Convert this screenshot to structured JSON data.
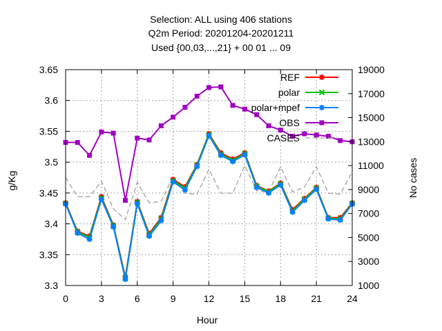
{
  "chart_data": {
    "type": "line",
    "title_lines": [
      "Selection: ALL using   406 stations",
      "Q2m   Period: 20201204-20201211",
      "Used {00,03,...,21} + 00 01 ... 09"
    ],
    "xlabel": "Hour",
    "ylabel": "g/Kg",
    "y2label": "No cases",
    "xlim": [
      0,
      24
    ],
    "ylim": [
      3.3,
      3.65
    ],
    "y2lim": [
      1000,
      19000
    ],
    "x_ticks": [
      "0",
      "3",
      "6",
      "9",
      "12",
      "15",
      "18",
      "21",
      "24"
    ],
    "y_ticks": [
      "3.3",
      "3.35",
      "3.4",
      "3.45",
      "3.5",
      "3.55",
      "3.6",
      "3.65"
    ],
    "y2_ticks": [
      "1000",
      "3000",
      "5000",
      "7000",
      "9000",
      "11000",
      "13000",
      "15000",
      "17000",
      "19000"
    ],
    "grid": true,
    "legend_position": "top-right",
    "x": [
      0,
      1,
      2,
      3,
      4,
      5,
      6,
      7,
      8,
      9,
      10,
      11,
      12,
      13,
      14,
      15,
      16,
      17,
      18,
      19,
      20,
      21,
      22,
      23,
      24
    ],
    "series": [
      {
        "name": "REF",
        "color": "#ff0000",
        "marker": "asterisk",
        "values": [
          3.434,
          3.388,
          3.38,
          3.444,
          3.398,
          3.314,
          3.436,
          3.384,
          3.41,
          3.472,
          3.46,
          3.496,
          3.546,
          3.515,
          3.505,
          3.515,
          3.462,
          3.453,
          3.466,
          3.423,
          3.441,
          3.459,
          3.41,
          3.41,
          3.434
        ]
      },
      {
        "name": "polar",
        "color": "#00c000",
        "marker": "x",
        "values": [
          3.433,
          3.387,
          3.378,
          3.442,
          3.397,
          3.312,
          3.435,
          3.382,
          3.408,
          3.47,
          3.458,
          3.495,
          3.545,
          3.513,
          3.503,
          3.514,
          3.461,
          3.452,
          3.465,
          3.421,
          3.44,
          3.458,
          3.409,
          3.408,
          3.433
        ]
      },
      {
        "name": "polar+mpef",
        "color": "#0080ff",
        "marker": "asterisk",
        "values": [
          3.432,
          3.385,
          3.375,
          3.44,
          3.395,
          3.31,
          3.433,
          3.38,
          3.405,
          3.468,
          3.455,
          3.493,
          3.543,
          3.511,
          3.501,
          3.512,
          3.459,
          3.45,
          3.463,
          3.419,
          3.438,
          3.456,
          3.408,
          3.406,
          3.432
        ]
      },
      {
        "name": "OBS",
        "color": "#a000c0",
        "marker": "square",
        "values": [
          3.532,
          3.532,
          3.511,
          3.549,
          3.547,
          3.438,
          3.539,
          3.536,
          3.559,
          3.573,
          3.589,
          3.607,
          3.621,
          3.622,
          3.592,
          3.586,
          3.577,
          3.559,
          3.552,
          3.542,
          3.546,
          3.544,
          3.542,
          3.535,
          3.533
        ]
      },
      {
        "name": "CASES",
        "color": "#a0a0a0",
        "dashed": true,
        "axis": "y2",
        "values": [
          10000,
          8400,
          8400,
          9700,
          7400,
          6500,
          9600,
          7900,
          8000,
          10100,
          8700,
          8600,
          10700,
          8700,
          8700,
          11000,
          8900,
          8800,
          10900,
          8800,
          9200,
          10900,
          8700,
          8600,
          10500
        ]
      }
    ]
  }
}
